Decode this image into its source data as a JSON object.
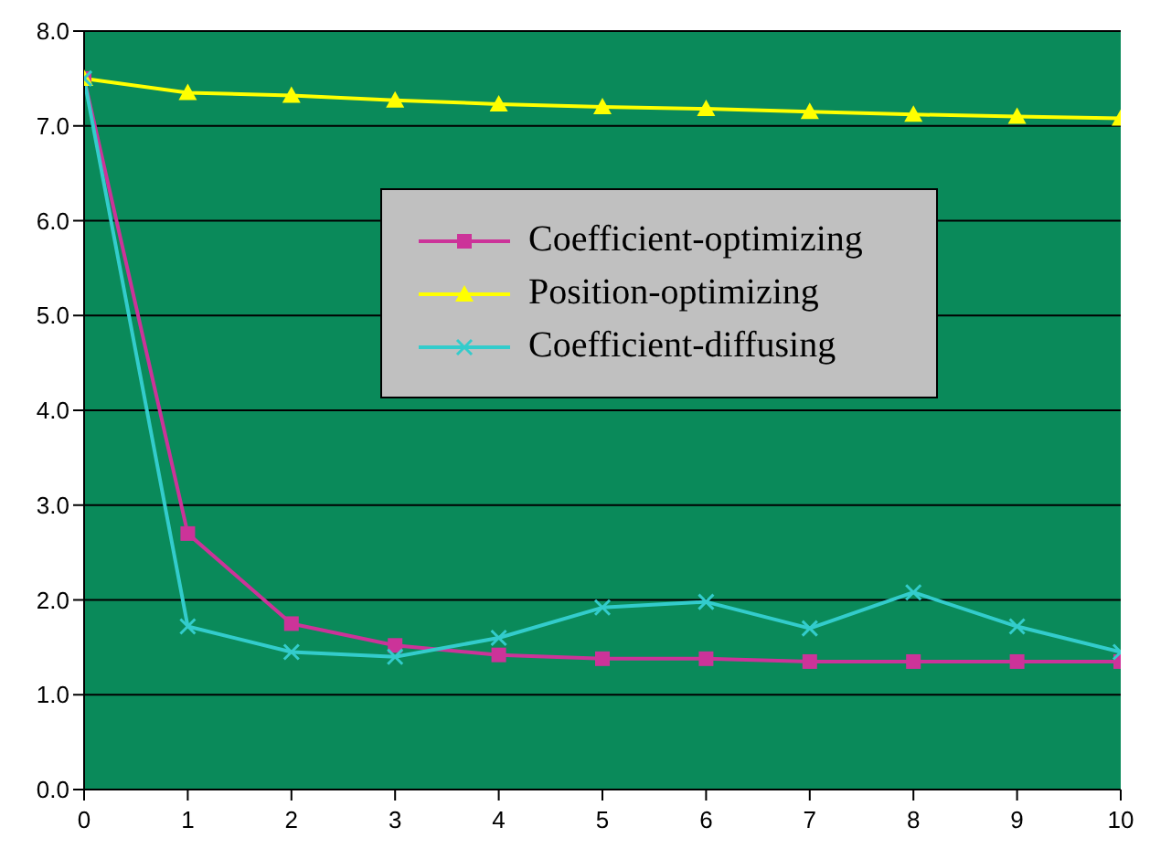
{
  "chart_data": {
    "type": "line",
    "x": [
      0,
      1,
      2,
      3,
      4,
      5,
      6,
      7,
      8,
      9,
      10
    ],
    "xlim": [
      0,
      10
    ],
    "xticks": [
      0,
      1,
      2,
      3,
      4,
      5,
      6,
      7,
      8,
      9,
      10
    ],
    "ylim": [
      0,
      8
    ],
    "yticks": [
      {
        "value": 0,
        "label": "0.0"
      },
      {
        "value": 1,
        "label": "1.0"
      },
      {
        "value": 2,
        "label": "2.0"
      },
      {
        "value": 3,
        "label": "3.0"
      },
      {
        "value": 4,
        "label": "4.0"
      },
      {
        "value": 5,
        "label": "5.0"
      },
      {
        "value": 6,
        "label": "6.0"
      },
      {
        "value": 7,
        "label": "7.0"
      },
      {
        "value": 8,
        "label": "8.0"
      }
    ],
    "grid": "y",
    "legend": "center",
    "series": [
      {
        "name": "Coefficient-optimizing",
        "color": "#cc3399",
        "marker": "square",
        "values": [
          7.5,
          2.7,
          1.75,
          1.52,
          1.42,
          1.38,
          1.38,
          1.35,
          1.35,
          1.35,
          1.35
        ]
      },
      {
        "name": "Position-optimizing",
        "color": "#ffff00",
        "marker": "triangle",
        "values": [
          7.5,
          7.35,
          7.32,
          7.27,
          7.23,
          7.2,
          7.18,
          7.15,
          7.12,
          7.1,
          7.08
        ]
      },
      {
        "name": "Coefficient-diffusing",
        "color": "#33cccc",
        "marker": "cross",
        "values": [
          7.5,
          1.72,
          1.45,
          1.4,
          1.6,
          1.92,
          1.98,
          1.7,
          2.08,
          1.72,
          1.45
        ]
      }
    ]
  }
}
